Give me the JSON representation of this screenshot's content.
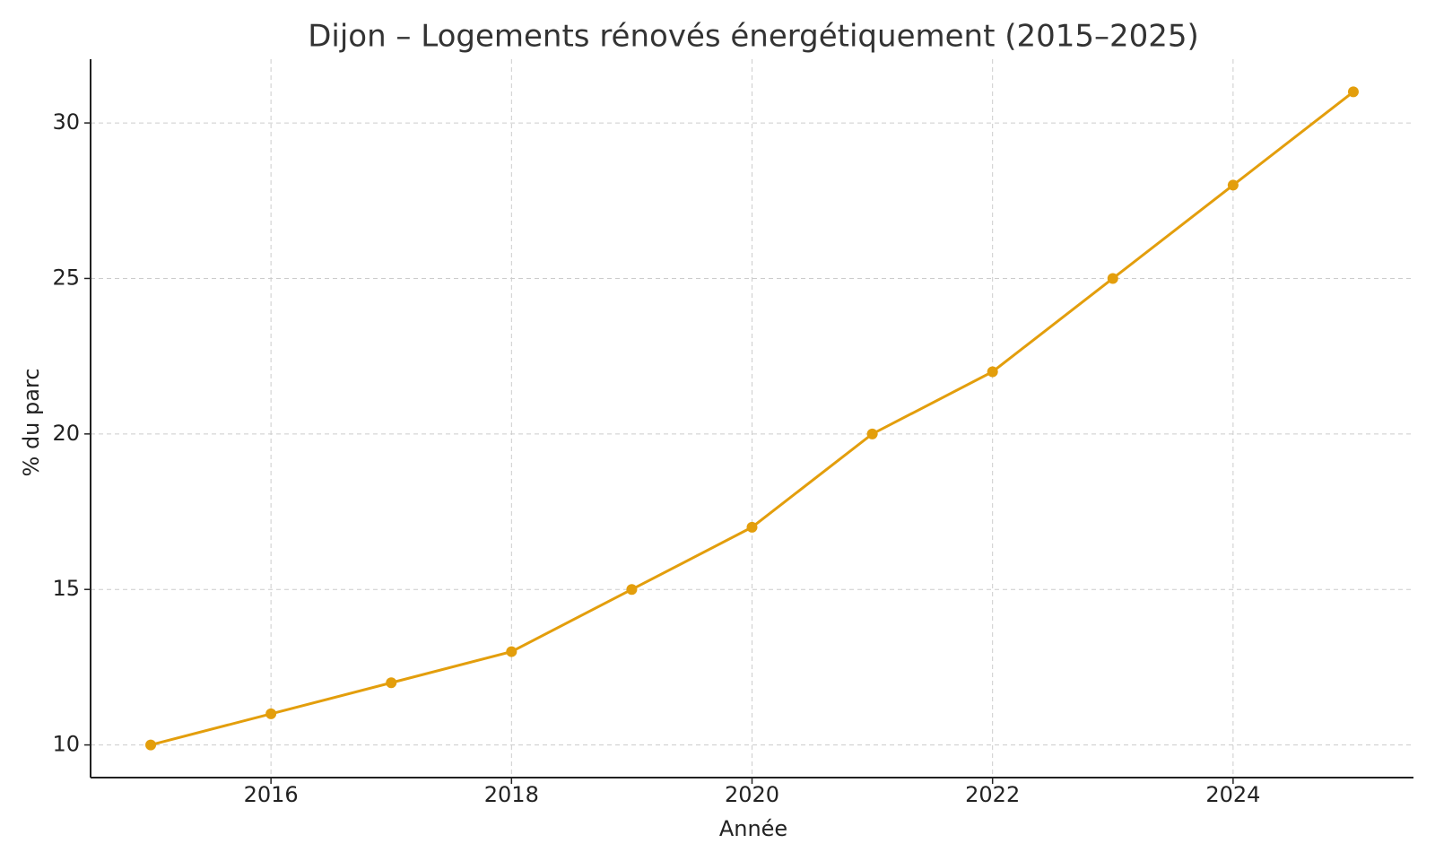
{
  "chart_data": {
    "type": "line",
    "title": "Dijon – Logements rénovés énergétiquement (2015–2025)",
    "x_label": "Année",
    "y_label": "% du parc",
    "x": [
      2015,
      2016,
      2017,
      2018,
      2019,
      2020,
      2021,
      2022,
      2023,
      2024,
      2025
    ],
    "series": [
      {
        "name": "% du parc",
        "color": "#e39e0c",
        "values": [
          10,
          11,
          12,
          13,
          15,
          17,
          20,
          22,
          25,
          28,
          31
        ]
      }
    ],
    "xlim": [
      2014.5,
      2025.5
    ],
    "xticks": [
      2016,
      2018,
      2020,
      2022,
      2024
    ],
    "ylim": [
      8.95,
      32.05
    ],
    "yticks": [
      10,
      15,
      20,
      25,
      30
    ],
    "grid": true
  }
}
